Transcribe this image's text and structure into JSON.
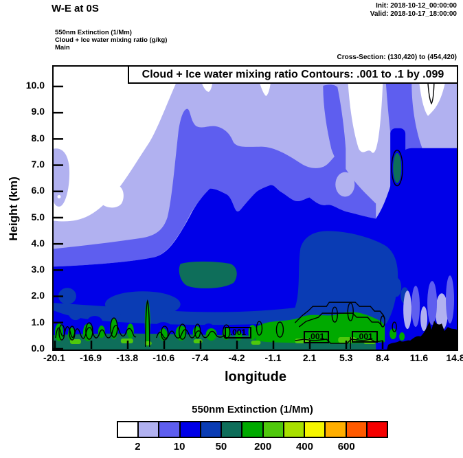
{
  "header": {
    "title": "W-E at 0S",
    "init": "Init: 2018-10-12_00:00:00",
    "valid": "Valid: 2018-10-17_18:00:00",
    "legend_lines": [
      "550nm Extinction  (1/Mm)",
      "Cloud + Ice water mixing ratio  (g/kg)",
      "Main"
    ],
    "cross_section": "Cross-Section: (130,420) to (454,420)"
  },
  "chart_data": {
    "type": "heatmap",
    "title": "Cloud + Ice water mixing ratio Contours: .001 to .1 by .099",
    "xlabel": "longitude",
    "ylabel": "Height (km)",
    "x_ticks": [
      "-20.1",
      "-16.9",
      "-13.8",
      "-10.6",
      "-7.4",
      "-4.2",
      "-1.1",
      "2.1",
      "5.3",
      "8.4",
      "11.6",
      "14.8"
    ],
    "y_ticks": [
      "0.0",
      "1.0",
      "2.0",
      "3.0",
      "4.0",
      "5.0",
      "6.0",
      "7.0",
      "8.0",
      "9.0",
      "10.0"
    ],
    "xlim": [
      -20.1,
      14.8
    ],
    "ylim_km": [
      0.0,
      10.8
    ],
    "grid": false,
    "shaded_variable": "550nm Extinction (1/Mm)",
    "contour_variable": "Cloud + Ice water mixing ratio (g/kg)",
    "contour_levels": ".001 to .1 by .099",
    "contour_line_labels": [
      ".001",
      ".001",
      ".001"
    ],
    "colorbar": {
      "title": "550nm Extinction  (1/Mm)",
      "position": "bottom",
      "colors": [
        "#ffffff",
        "#b1b1f0",
        "#5e5eef",
        "#0000e8",
        "#0a3cb4",
        "#0e6e5a",
        "#00aa00",
        "#4fc80c",
        "#a8e000",
        "#f5f500",
        "#ffae00",
        "#ff5a00",
        "#f50000"
      ],
      "tick_labels": [
        "2",
        "10",
        "50",
        "200",
        "400",
        "600"
      ],
      "tick_boundary_indices": [
        1,
        3,
        5,
        7,
        9,
        11
      ]
    }
  }
}
